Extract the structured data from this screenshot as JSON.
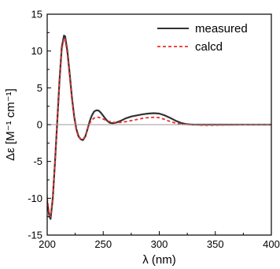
{
  "chart_data": {
    "type": "line",
    "xlabel": "λ (nm)",
    "ylabel": "Δε [M⁻¹ cm⁻¹]",
    "xlim": [
      200,
      400
    ],
    "ylim": [
      -15,
      15
    ],
    "xticks": [
      200,
      250,
      300,
      350,
      400
    ],
    "yticks": [
      -15,
      -10,
      -5,
      0,
      5,
      10,
      15
    ],
    "grid": false,
    "zero_line": true,
    "legend_position": "top-right",
    "series": [
      {
        "name": "measured",
        "color": "#333333",
        "dash": "solid",
        "x": [
          198,
          200,
          202,
          203,
          205,
          207,
          209,
          211,
          213,
          215,
          216,
          218,
          220,
          222,
          224,
          226,
          228,
          230,
          232,
          234,
          236,
          238,
          240,
          242,
          244,
          246,
          248,
          250,
          252,
          254,
          256,
          258,
          260,
          262,
          266,
          270,
          275,
          280,
          285,
          290,
          295,
          300,
          305,
          310,
          315,
          320,
          325,
          330,
          340,
          360,
          380,
          400
        ],
        "y": [
          -6.0,
          -10.5,
          -12.5,
          -12.8,
          -10.0,
          -5.0,
          0.5,
          6.0,
          10.5,
          12.1,
          12.0,
          10.0,
          7.0,
          3.8,
          1.2,
          -0.6,
          -1.6,
          -2.0,
          -2.1,
          -1.6,
          -0.6,
          0.5,
          1.3,
          1.8,
          1.95,
          1.9,
          1.6,
          1.2,
          0.8,
          0.45,
          0.25,
          0.2,
          0.22,
          0.3,
          0.55,
          0.85,
          1.1,
          1.25,
          1.4,
          1.5,
          1.55,
          1.5,
          1.25,
          0.9,
          0.5,
          0.2,
          0.05,
          0.0,
          0.0,
          0.0,
          0.0,
          0.0
        ]
      },
      {
        "name": "calcd",
        "color": "#e8312e",
        "dash": "dashed",
        "x": [
          198,
          200,
          202,
          203,
          205,
          207,
          209,
          211,
          213,
          215,
          216,
          218,
          220,
          222,
          224,
          226,
          228,
          230,
          232,
          234,
          236,
          238,
          240,
          242,
          244,
          246,
          248,
          250,
          255,
          260,
          265,
          270,
          275,
          280,
          285,
          290,
          295,
          300,
          305,
          310,
          315,
          320,
          325,
          330,
          340,
          360,
          380,
          400
        ],
        "y": [
          -5.5,
          -10.0,
          -12.3,
          -12.5,
          -9.8,
          -5.0,
          0.3,
          5.8,
          10.2,
          11.7,
          11.6,
          9.6,
          6.6,
          3.5,
          1.0,
          -0.8,
          -1.7,
          -2.0,
          -2.0,
          -1.5,
          -0.6,
          0.2,
          0.65,
          0.9,
          1.0,
          1.0,
          0.9,
          0.75,
          0.45,
          0.3,
          0.3,
          0.4,
          0.55,
          0.7,
          0.85,
          0.95,
          1.0,
          0.95,
          0.7,
          0.4,
          0.2,
          0.05,
          0.0,
          0.0,
          -0.1,
          -0.05,
          0.0,
          0.0
        ]
      }
    ]
  }
}
